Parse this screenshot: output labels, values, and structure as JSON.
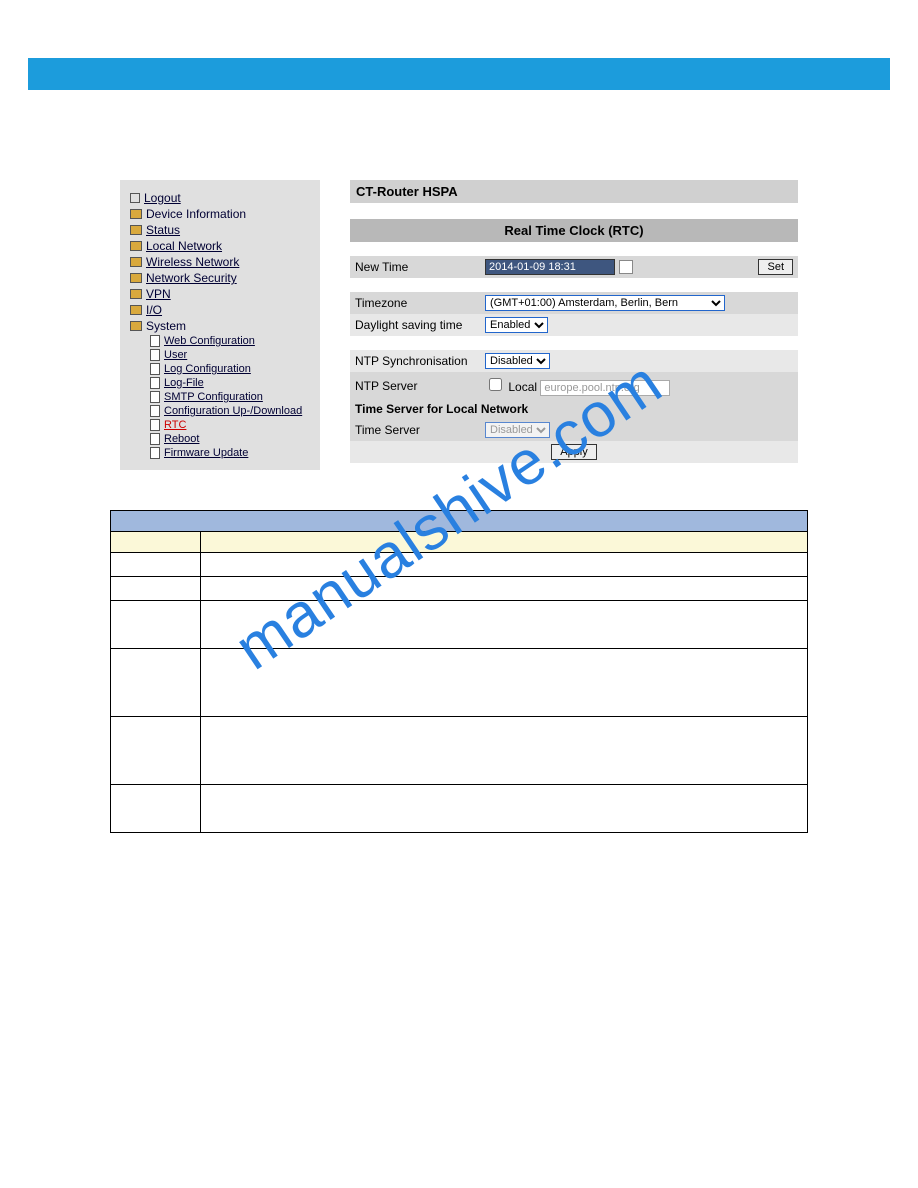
{
  "watermark": "manualshive.com",
  "nav": {
    "items": [
      {
        "label": "Logout",
        "icon": "out"
      },
      {
        "label": "Device Information",
        "icon": "folder"
      },
      {
        "label": "Status",
        "icon": "folder"
      },
      {
        "label": "Local Network",
        "icon": "folder"
      },
      {
        "label": "Wireless Network",
        "icon": "folder"
      },
      {
        "label": "Network Security",
        "icon": "folder"
      },
      {
        "label": "VPN",
        "icon": "folder"
      },
      {
        "label": "I/O",
        "icon": "folder"
      },
      {
        "label": "System",
        "icon": "folder"
      }
    ],
    "subitems": [
      {
        "label": "Web Configuration"
      },
      {
        "label": "User"
      },
      {
        "label": "Log Configuration"
      },
      {
        "label": "Log-File"
      },
      {
        "label": "SMTP Configuration"
      },
      {
        "label": "Configuration Up-/Download"
      },
      {
        "label": "RTC",
        "active": true
      },
      {
        "label": "Reboot"
      },
      {
        "label": "Firmware Update"
      }
    ]
  },
  "panel": {
    "device_title": "CT-Router HSPA",
    "section_title": "Real Time Clock (RTC)",
    "new_time_label": "New Time",
    "new_time_value": "2014-01-09 18:31",
    "set_btn": "Set",
    "timezone_label": "Timezone",
    "timezone_value": "(GMT+01:00) Amsterdam, Berlin, Bern",
    "dst_label": "Daylight saving time",
    "dst_value": "Enabled",
    "ntp_sync_label": "NTP Synchronisation",
    "ntp_sync_value": "Disabled",
    "ntp_server_label": "NTP Server",
    "ntp_local_label": "Local",
    "ntp_server_value": "europe.pool.ntp.org",
    "time_server_section": "Time Server for Local Network",
    "time_server_label": "Time Server",
    "time_server_value": "Disabled",
    "apply_btn": "Apply"
  }
}
